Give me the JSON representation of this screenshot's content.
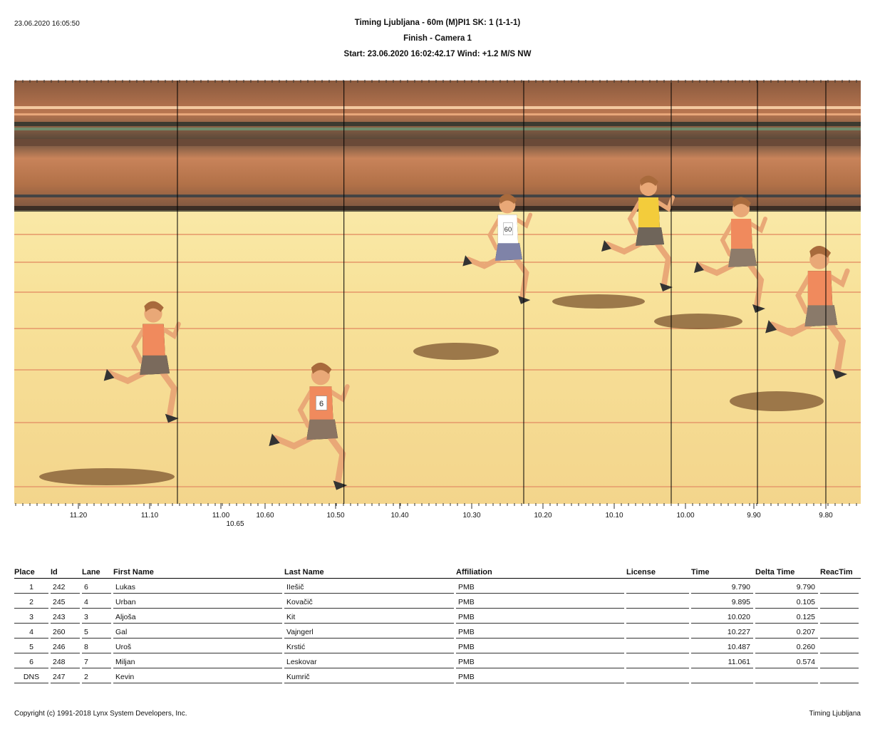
{
  "report": {
    "printed_at": "23.06.2020 16:05:50",
    "title": "Timing Ljubljana - 60m (M)PI1   SK: 1 (1-1-1)",
    "subtitle": "Finish - Camera 1",
    "start_info": "Start: 23.06.2020 16:02:42.17    Wind: +1.2 M/S NW"
  },
  "timeline": {
    "labels": [
      "11.20",
      "11.10",
      "11.00",
      "10.60",
      "10.50",
      "10.40",
      "10.30",
      "10.20",
      "10.10",
      "10.00",
      "9.90",
      "9.80"
    ],
    "sub_label": "10.65",
    "finish_lines_seconds": [
      11.061,
      10.487,
      10.227,
      10.02,
      9.895,
      9.79
    ]
  },
  "runners": [
    {
      "bib": "",
      "shirt": "#f08a5d",
      "shorts": "#7a6a5c"
    },
    {
      "bib": "6",
      "shirt": "#f08a5d",
      "shorts": "#8a7462"
    },
    {
      "bib": "60",
      "shirt": "#ffffff",
      "shorts": "#7f83a8"
    },
    {
      "bib": "",
      "shirt": "#f3cc3b",
      "shorts": "#6f655a"
    },
    {
      "bib": "",
      "shirt": "#f08a5d",
      "shorts": "#8d7b6a"
    },
    {
      "bib": "",
      "shirt": "#f08a5d",
      "shorts": "#8a7a6a"
    }
  ],
  "table": {
    "headers": [
      "Place",
      "Id",
      "Lane",
      "First Name",
      "Last Name",
      "Affiliation",
      "License",
      "Time",
      "Delta Time",
      "ReacTim"
    ],
    "rows": [
      [
        "1",
        "242",
        "6",
        "Lukas",
        "IIešič",
        "PMB",
        "",
        "9.790",
        "9.790",
        ""
      ],
      [
        "2",
        "245",
        "4",
        "Urban",
        "Kovačič",
        "PMB",
        "",
        "9.895",
        "0.105",
        ""
      ],
      [
        "3",
        "243",
        "3",
        "Aljoša",
        "Kit",
        "PMB",
        "",
        "10.020",
        "0.125",
        ""
      ],
      [
        "4",
        "260",
        "5",
        "Gal",
        "Vajngerl",
        "PMB",
        "",
        "10.227",
        "0.207",
        ""
      ],
      [
        "5",
        "246",
        "8",
        "Uroš",
        "Krstić",
        "PMB",
        "",
        "10.487",
        "0.260",
        ""
      ],
      [
        "6",
        "248",
        "7",
        "Miljan",
        "Leskovar",
        "PMB",
        "",
        "11.061",
        "0.574",
        ""
      ],
      [
        "DNS",
        "247",
        "2",
        "Kevin",
        "Kumrič",
        "PMB",
        "",
        "",
        "",
        ""
      ]
    ]
  },
  "footer": {
    "copyright": "Copyright (c) 1991-2018 Lynx System Developers, Inc.",
    "brand": "Timing Ljubljana"
  }
}
